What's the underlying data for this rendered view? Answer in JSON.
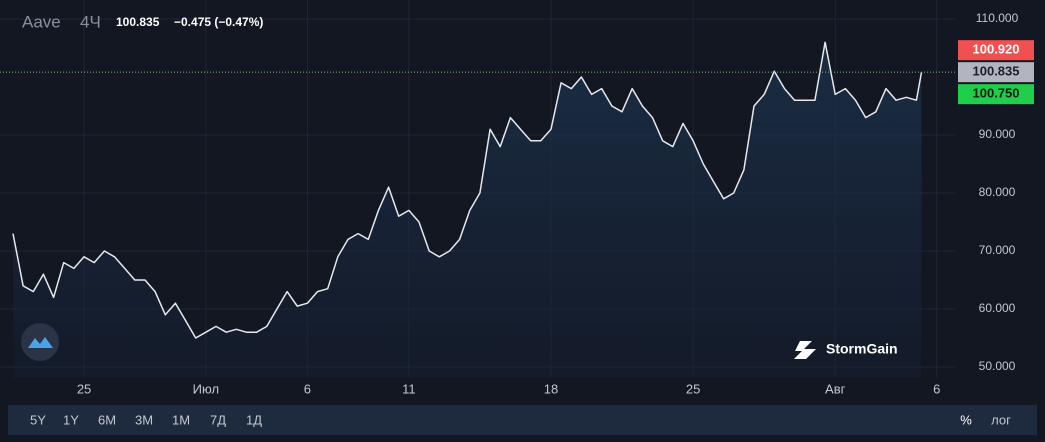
{
  "chart_data": {
    "type": "line",
    "symbol": "Aave",
    "interval": "4Ч",
    "price": "100.835",
    "change": "−0.475 (−0.47%)",
    "brand": "StormGain",
    "ranges": [
      "5Y",
      "1Y",
      "6M",
      "3M",
      "1M",
      "7Д",
      "1Д"
    ],
    "percent_toggle": "%",
    "log_toggle": "лог",
    "current": {
      "value": 100.835,
      "label": "100.835"
    },
    "price_labels": [
      {
        "value": 100.92,
        "label": "100.920",
        "color": "#f05050"
      },
      {
        "value": 100.75,
        "label": "100.750",
        "color": "#1fcf4a"
      }
    ],
    "x": [
      -3.5,
      -3,
      -2.5,
      -2,
      -1.5,
      -1,
      -0.5,
      0,
      0.5,
      1,
      1.5,
      2,
      2.5,
      3,
      3.5,
      4,
      4.5,
      5,
      5.5,
      6,
      6.5,
      7,
      7.5,
      8,
      8.5,
      9,
      9.5,
      10,
      10.5,
      11,
      11.5,
      12,
      12.5,
      13,
      13.5,
      14,
      14.5,
      15,
      15.5,
      16,
      16.5,
      17,
      17.5,
      18,
      18.5,
      19,
      19.5,
      20,
      20.5,
      21,
      21.5,
      22,
      22.5,
      23,
      23.5,
      24,
      24.5,
      25,
      25.5,
      26,
      26.5,
      27,
      27.5,
      28,
      28.5,
      29,
      29.5,
      30,
      30.5,
      31,
      31.5,
      32,
      32.5,
      33,
      33.5,
      34,
      34.5,
      35,
      35.5,
      36,
      36.5,
      37,
      37.5,
      38,
      38.5,
      39,
      39.5,
      40,
      40.5,
      41,
      41.25
    ],
    "series": [
      {
        "name": "Aave",
        "color": "#e6e8ee",
        "values": [
          73,
          64,
          63,
          66,
          62,
          68,
          67,
          69,
          68,
          70,
          69,
          67,
          65,
          65,
          63,
          59,
          61,
          58,
          55,
          56,
          57,
          56,
          56.5,
          56,
          56,
          57,
          60,
          63,
          60.5,
          61,
          63,
          63.5,
          69,
          72,
          73,
          72,
          77,
          81,
          76,
          77,
          75,
          70,
          69,
          70,
          72,
          77,
          80,
          91,
          88,
          93,
          91,
          89,
          89,
          91,
          99,
          98,
          100,
          97,
          98,
          95,
          94,
          98,
          95,
          93,
          89,
          88,
          92,
          89,
          85,
          82,
          79,
          80,
          84,
          95,
          97,
          101,
          98,
          96,
          96,
          96,
          106,
          97,
          98,
          96,
          93,
          94,
          98,
          96,
          96.5,
          96,
          100.835
        ]
      }
    ],
    "xlim": [
      -4.14,
      42.9
    ],
    "xticks": [
      {
        "value": 0,
        "label": "25"
      },
      {
        "value": 6,
        "label": "Июл"
      },
      {
        "value": 11,
        "label": "6"
      },
      {
        "value": 16,
        "label": "11"
      },
      {
        "value": 23,
        "label": "18"
      },
      {
        "value": 30,
        "label": "25"
      },
      {
        "value": 37,
        "label": "Авг"
      },
      {
        "value": 42,
        "label": "6"
      }
    ],
    "ylim": [
      48.1,
      113.28
    ],
    "yticks": [
      {
        "value": 50,
        "label": "50.000"
      },
      {
        "value": 60,
        "label": "60.000"
      },
      {
        "value": 70,
        "label": "70.000"
      },
      {
        "value": 80,
        "label": "80.000"
      },
      {
        "value": 90,
        "label": "90.000"
      },
      {
        "value": 110,
        "label": "110.000"
      }
    ],
    "grid": true
  }
}
